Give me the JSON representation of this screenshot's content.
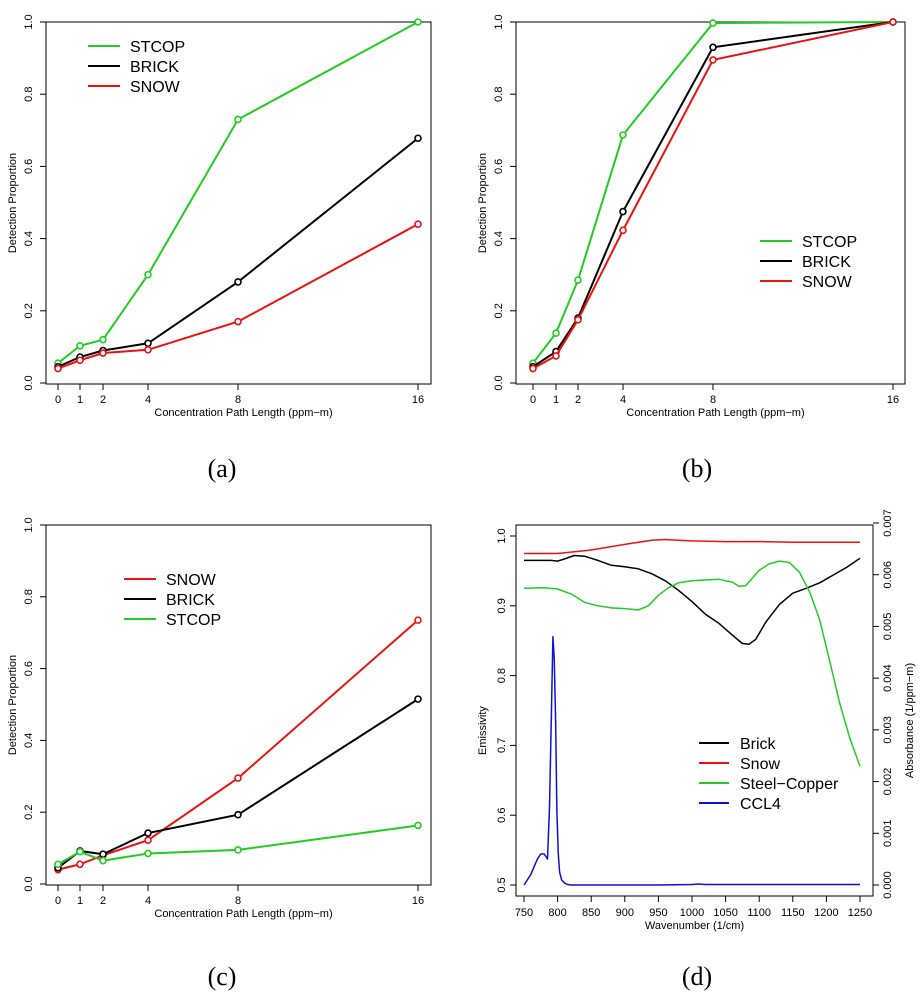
{
  "chart_data": [
    {
      "id": "a",
      "type": "line",
      "caption": "(a)",
      "xlabel": "Concentration Path Length (ppm−m)",
      "ylabel": "Detection Proportion",
      "x": [
        0,
        1,
        2,
        4,
        8,
        16
      ],
      "x_tick_labels": [
        "0",
        "1",
        "2",
        "4",
        "8",
        "16"
      ],
      "y_ticks": [
        "0.0",
        "0.2",
        "0.4",
        "0.6",
        "0.8",
        "1.0"
      ],
      "ylim": [
        0,
        1
      ],
      "legend_position": "top-left",
      "series": [
        {
          "name": "STCOP",
          "color": "#22cc22",
          "values": [
            0.055,
            0.103,
            0.12,
            0.3,
            0.73,
            1.0
          ]
        },
        {
          "name": "BRICK",
          "color": "#000000",
          "values": [
            0.045,
            0.072,
            0.09,
            0.11,
            0.28,
            0.678
          ]
        },
        {
          "name": "SNOW",
          "color": "#ee1111",
          "values": [
            0.04,
            0.063,
            0.083,
            0.092,
            0.17,
            0.44
          ]
        }
      ],
      "legend_order": [
        "STCOP",
        "BRICK",
        "SNOW"
      ]
    },
    {
      "id": "b",
      "type": "line",
      "caption": "(b)",
      "xlabel": "Concentration Path Length (ppm−m)",
      "ylabel": "Detection Proportion",
      "x": [
        0,
        1,
        2,
        4,
        8,
        16
      ],
      "x_tick_labels": [
        "0",
        "1",
        "2",
        "4",
        "8",
        "16"
      ],
      "y_ticks": [
        "0.0",
        "0.2",
        "0.4",
        "0.6",
        "0.8",
        "1.0"
      ],
      "ylim": [
        0,
        1
      ],
      "legend_position": "middle-right",
      "series": [
        {
          "name": "STCOP",
          "color": "#22cc22",
          "values": [
            0.055,
            0.138,
            0.285,
            0.687,
            0.997,
            1.0
          ]
        },
        {
          "name": "BRICK",
          "color": "#000000",
          "values": [
            0.045,
            0.087,
            0.18,
            0.475,
            0.93,
            1.0
          ]
        },
        {
          "name": "SNOW",
          "color": "#ee1111",
          "values": [
            0.04,
            0.075,
            0.175,
            0.423,
            0.895,
            1.0
          ]
        }
      ],
      "legend_order": [
        "STCOP",
        "BRICK",
        "SNOW"
      ]
    },
    {
      "id": "c",
      "type": "line",
      "caption": "(c)",
      "xlabel": "Concentration Path Length (ppm−m)",
      "ylabel": "Detection Proportion",
      "x": [
        0,
        1,
        2,
        4,
        8,
        16
      ],
      "x_tick_labels": [
        "0",
        "1",
        "2",
        "4",
        "8",
        "16"
      ],
      "y_ticks": [
        "0.0",
        "0.2",
        "0.4",
        "0.6",
        "0.8",
        "1.0"
      ],
      "ylim": [
        0,
        1
      ],
      "legend_position": "top-left",
      "series": [
        {
          "name": "SNOW",
          "color": "#ee1111",
          "values": [
            0.04,
            0.055,
            0.08,
            0.122,
            0.295,
            0.735
          ]
        },
        {
          "name": "BRICK",
          "color": "#000000",
          "values": [
            0.045,
            0.092,
            0.083,
            0.142,
            0.193,
            0.515
          ]
        },
        {
          "name": "STCOP",
          "color": "#22cc22",
          "values": [
            0.055,
            0.09,
            0.065,
            0.085,
            0.095,
            0.163
          ]
        }
      ],
      "legend_order": [
        "SNOW",
        "BRICK",
        "STCOP"
      ]
    },
    {
      "id": "d",
      "type": "line",
      "caption": "(d)",
      "xlabel": "Wavenumber (1/cm)",
      "ylabel": "Emissivity",
      "y2label": "Absorbance (1/ppm−m)",
      "xlim": [
        750,
        1250
      ],
      "x_ticks": [
        "750",
        "800",
        "850",
        "900",
        "950",
        "1000",
        "1050",
        "1100",
        "1150",
        "1200",
        "1250"
      ],
      "ylim": [
        0.5,
        1.0
      ],
      "y_ticks": [
        "0.5",
        "0.6",
        "0.7",
        "0.8",
        "0.9",
        "1.0"
      ],
      "y2lim": [
        0,
        0.007
      ],
      "y2_ticks": [
        "0.000",
        "0.001",
        "0.002",
        "0.003",
        "0.004",
        "0.005",
        "0.006",
        "0.007"
      ],
      "legend_position": "bottom-right",
      "series": [
        {
          "name": "Brick",
          "color": "#000000",
          "axis": "left",
          "x": [
            750,
            790,
            800,
            810,
            825,
            840,
            860,
            880,
            900,
            920,
            940,
            960,
            980,
            1000,
            1020,
            1040,
            1060,
            1075,
            1085,
            1095,
            1110,
            1130,
            1150,
            1170,
            1190,
            1210,
            1230,
            1250
          ],
          "values": [
            0.965,
            0.965,
            0.964,
            0.967,
            0.972,
            0.971,
            0.965,
            0.958,
            0.956,
            0.953,
            0.946,
            0.936,
            0.922,
            0.906,
            0.888,
            0.875,
            0.858,
            0.846,
            0.845,
            0.852,
            0.877,
            0.902,
            0.918,
            0.925,
            0.933,
            0.944,
            0.955,
            0.968
          ]
        },
        {
          "name": "Snow",
          "color": "#ee1111",
          "axis": "left",
          "x": [
            750,
            800,
            850,
            900,
            940,
            960,
            980,
            1000,
            1050,
            1100,
            1150,
            1200,
            1250
          ],
          "values": [
            0.975,
            0.975,
            0.98,
            0.988,
            0.994,
            0.995,
            0.994,
            0.993,
            0.992,
            0.992,
            0.991,
            0.991,
            0.991
          ]
        },
        {
          "name": "Steel−Copper",
          "color": "#22cc22",
          "axis": "left",
          "x": [
            750,
            780,
            800,
            820,
            840,
            860,
            880,
            900,
            920,
            935,
            950,
            965,
            980,
            1000,
            1020,
            1040,
            1060,
            1070,
            1080,
            1090,
            1100,
            1115,
            1130,
            1145,
            1160,
            1175,
            1190,
            1205,
            1220,
            1235,
            1250
          ],
          "values": [
            0.925,
            0.926,
            0.924,
            0.917,
            0.905,
            0.9,
            0.897,
            0.896,
            0.894,
            0.9,
            0.915,
            0.926,
            0.933,
            0.936,
            0.937,
            0.938,
            0.934,
            0.928,
            0.929,
            0.94,
            0.951,
            0.96,
            0.964,
            0.962,
            0.948,
            0.92,
            0.88,
            0.82,
            0.76,
            0.71,
            0.67
          ]
        },
        {
          "name": "CCL4",
          "color": "#1111cc",
          "axis": "right",
          "x": [
            750,
            760,
            770,
            775,
            780,
            785,
            788,
            791,
            793,
            795,
            797,
            799,
            801,
            803,
            806,
            810,
            815,
            820,
            830,
            850,
            900,
            950,
            1000,
            1010,
            1020,
            1100,
            1150,
            1200,
            1250
          ],
          "values": [
            0.0,
            0.0002,
            0.0005,
            0.0006,
            0.0006,
            0.0005,
            0.0015,
            0.0035,
            0.0048,
            0.0044,
            0.0032,
            0.0014,
            0.0006,
            0.00025,
            0.0001,
            4e-05,
            1e-05,
            0.0,
            0.0,
            0.0,
            0.0,
            0.0,
            1e-05,
            2e-05,
            1e-05,
            1e-05,
            1e-05,
            1e-05,
            1e-05
          ]
        }
      ],
      "legend_order": [
        "Brick",
        "Snow",
        "Steel−Copper",
        "CCL4"
      ]
    }
  ]
}
